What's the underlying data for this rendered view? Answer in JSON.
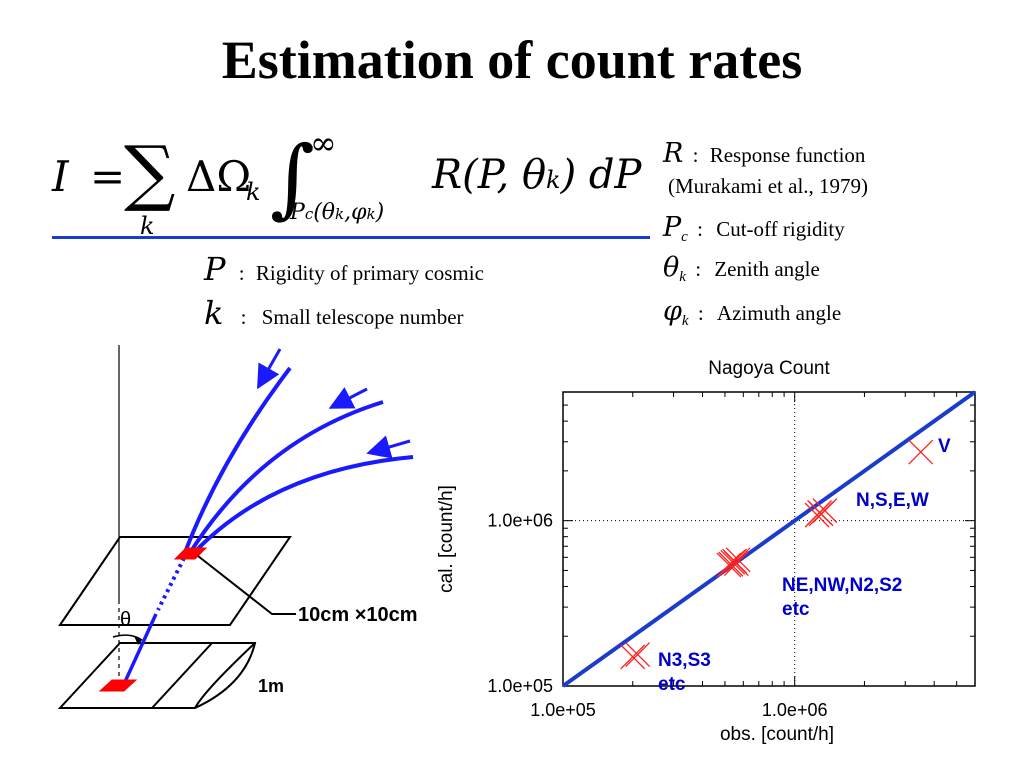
{
  "title": "Estimation of count rates",
  "formula": {
    "lhs": "I",
    "sum_index": "k",
    "delta_omega": "ΔΩ",
    "delta_omega_sub": "k",
    "integral_upper": "∞",
    "integral_lower": "P",
    "integral_lower_sub": "c",
    "integral_lower_args": "(θ",
    "integral_lower_args_sub1": "k",
    "integral_lower_args_mid": ",φ",
    "integral_lower_args_sub2": "k",
    "integral_lower_args_end": ")",
    "integrand": "R(P, θ",
    "integrand_sub": "k",
    "integrand_end": ")  dP"
  },
  "definitions": {
    "R_symbol": "R",
    "R_text": "Response function",
    "R_ref": "(Murakami et al., 1979)",
    "Pc_symbol": "P",
    "Pc_sub": "c",
    "Pc_text": "Cut-off rigidity",
    "theta_symbol": "θ",
    "theta_sub": "k",
    "theta_text": "Zenith angle",
    "phi_symbol": "φ",
    "phi_sub": "k",
    "phi_text": "Azimuth angle",
    "P_symbol": "P",
    "P_text": "Rigidity of primary cosmic",
    "k_symbol": "k",
    "k_text": "Small telescope number",
    "colon": ":"
  },
  "diagram": {
    "theta_label": "θ",
    "detector_size": "10cm ×10cm",
    "depth_label": "1m",
    "colors": {
      "track": "#1a1aff",
      "detector": "#ff0000",
      "outline": "#000000"
    }
  },
  "chart_data": {
    "type": "scatter",
    "title": "Nagoya Count",
    "xlabel": "obs. [count/h]",
    "ylabel": "cal. [count/h]",
    "xscale": "log",
    "yscale": "log",
    "xlim": [
      100000,
      6000000
    ],
    "ylim": [
      100000,
      6000000
    ],
    "xticks": [
      {
        "value": 100000,
        "label": "1.0e+05"
      },
      {
        "value": 1000000,
        "label": "1.0e+06"
      }
    ],
    "yticks": [
      {
        "value": 100000,
        "label": "1.0e+05"
      },
      {
        "value": 1000000,
        "label": "1.0e+06"
      }
    ],
    "reference_line": [
      [
        100000,
        100000
      ],
      [
        6000000,
        6000000
      ]
    ],
    "series": [
      {
        "label": "V",
        "x": [
          3500000
        ],
        "y": [
          2600000
        ]
      },
      {
        "label": "N,S,E,W",
        "x": [
          1300000,
          1250000,
          1350000,
          1280000
        ],
        "y": [
          1100000,
          1080000,
          1150000,
          1120000
        ]
      },
      {
        "label": "NE,NW,N2,S2 etc",
        "x": [
          520000,
          550000,
          540000,
          570000,
          560000,
          530000
        ],
        "y": [
          540000,
          570000,
          560000,
          580000,
          550000,
          545000
        ]
      },
      {
        "label": "N3,S3 etc",
        "x": [
          200000,
          210000
        ],
        "y": [
          150000,
          155000
        ]
      }
    ],
    "grid": "dotted at 1.0e+06",
    "colors": {
      "line": "#1a3ccc",
      "markers": "#ff2020",
      "labels": "#0000cc"
    }
  }
}
